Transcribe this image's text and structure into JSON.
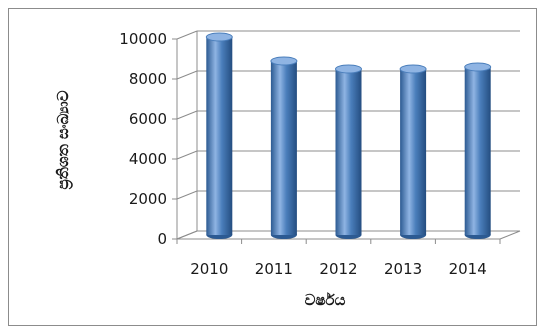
{
  "chart_data": {
    "type": "bar",
    "categories": [
      "2010",
      "2011",
      "2012",
      "2013",
      "2014"
    ],
    "values": [
      9900,
      8700,
      8300,
      8300,
      8400
    ],
    "ylim": [
      0,
      10000
    ],
    "yticks": [
      "0",
      "2000",
      "4000",
      "6000",
      "8000",
      "10000"
    ],
    "xlabel": "වර්ෂය",
    "ylabel": "ප්‍රතිශත සංඛ්‍යාව",
    "grid": true,
    "legend": "none",
    "style": "3d-cylinder",
    "colors": {
      "bar": "#4a7ebb",
      "bar_dark": "#2c5a92",
      "bar_light": "#8fb4e3",
      "grid": "#8c8c8c"
    }
  }
}
